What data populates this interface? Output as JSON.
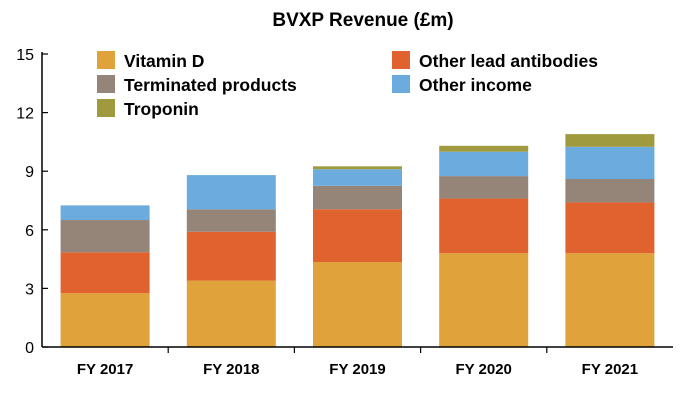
{
  "chart_data": {
    "type": "bar",
    "stacked": true,
    "title": "BVXP Revenue (£m)",
    "xlabel": "",
    "ylabel": "",
    "categories": [
      "FY 2017",
      "FY 2018",
      "FY 2019",
      "FY 2020",
      "FY 2021"
    ],
    "ylim": [
      0,
      15
    ],
    "yticks": [
      0,
      3,
      6,
      9,
      12,
      15
    ],
    "grid": false,
    "legend_position": "top",
    "series": [
      {
        "name": "Vitamin D",
        "color": "#E0A23A",
        "values": [
          2.75,
          3.4,
          4.35,
          4.8,
          4.8
        ]
      },
      {
        "name": "Other lead antibodies",
        "color": "#E0622E",
        "values": [
          2.1,
          2.5,
          2.7,
          2.8,
          2.6
        ]
      },
      {
        "name": "Terminated products",
        "color": "#958478",
        "values": [
          1.65,
          1.15,
          1.2,
          1.15,
          1.2
        ]
      },
      {
        "name": "Other income",
        "color": "#6CABDD",
        "values": [
          0.75,
          1.75,
          0.85,
          1.25,
          1.65
        ]
      },
      {
        "name": "Troponin",
        "color": "#A09A3E",
        "values": [
          0,
          0,
          0.15,
          0.3,
          0.65
        ]
      }
    ]
  }
}
